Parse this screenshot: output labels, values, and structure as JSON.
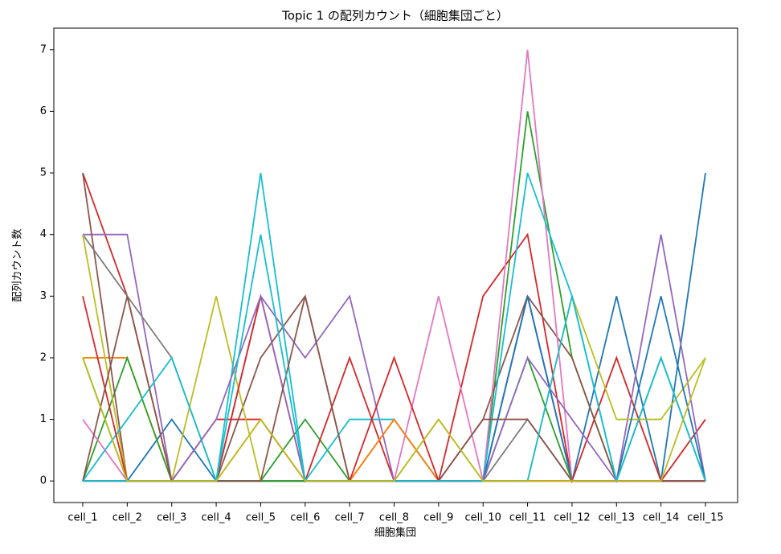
{
  "chart_data": {
    "type": "line",
    "title": "Topic 1 の配列カウント（細胞集団ごと）",
    "x_label": "細胞集団",
    "y_label": "配列カウント数",
    "categories": [
      "cell_1",
      "cell_2",
      "cell_3",
      "cell_4",
      "cell_5",
      "cell_6",
      "cell_7",
      "cell_8",
      "cell_9",
      "cell_10",
      "cell_11",
      "cell_12",
      "cell_13",
      "cell_14",
      "cell_15"
    ],
    "ylim": [
      -0.35,
      7.35
    ],
    "yticks": [
      0,
      1,
      2,
      3,
      4,
      5,
      6,
      7
    ],
    "grid": false,
    "series": [
      {
        "color": "#1f77b4",
        "values": [
          0,
          0,
          1,
          0,
          0,
          0,
          0,
          0,
          0,
          0,
          3,
          0,
          3,
          0,
          5
        ]
      },
      {
        "color": "#ff7f0e",
        "values": [
          2,
          2,
          0,
          0,
          0,
          0,
          0,
          1,
          0,
          0,
          0,
          0,
          0,
          0,
          0
        ]
      },
      {
        "color": "#2ca02c",
        "values": [
          0,
          2,
          0,
          0,
          0,
          1,
          0,
          0,
          0,
          0,
          6,
          2,
          0,
          0,
          0
        ]
      },
      {
        "color": "#d62728",
        "values": [
          5,
          3,
          0,
          1,
          1,
          0,
          2,
          0,
          0,
          3,
          4,
          0,
          2,
          0,
          1
        ]
      },
      {
        "color": "#9467bd",
        "values": [
          4,
          4,
          0,
          0,
          3,
          2,
          3,
          0,
          0,
          0,
          3,
          0,
          0,
          4,
          0
        ]
      },
      {
        "color": "#8c564b",
        "values": [
          5,
          0,
          0,
          0,
          2,
          3,
          0,
          0,
          0,
          1,
          3,
          2,
          0,
          0,
          0
        ]
      },
      {
        "color": "#e377c2",
        "values": [
          1,
          0,
          0,
          0,
          0,
          0,
          0,
          0,
          3,
          0,
          7,
          0,
          0,
          0,
          0
        ]
      },
      {
        "color": "#7f7f7f",
        "values": [
          4,
          3,
          2,
          0,
          0,
          0,
          0,
          0,
          0,
          0,
          1,
          0,
          0,
          0,
          0
        ]
      },
      {
        "color": "#bcbd22",
        "values": [
          4,
          0,
          0,
          3,
          0,
          0,
          0,
          0,
          1,
          0,
          0,
          3,
          1,
          1,
          2
        ]
      },
      {
        "color": "#17becf",
        "values": [
          0,
          1,
          2,
          0,
          5,
          0,
          1,
          1,
          0,
          0,
          5,
          3,
          0,
          0,
          0
        ]
      },
      {
        "color": "#1f77b4",
        "values": [
          0,
          0,
          0,
          0,
          0,
          0,
          0,
          0,
          0,
          0,
          3,
          0,
          0,
          3,
          0
        ]
      },
      {
        "color": "#ff7f0e",
        "values": [
          0,
          0,
          0,
          0,
          1,
          0,
          0,
          1,
          0,
          0,
          0,
          0,
          0,
          0,
          0
        ]
      },
      {
        "color": "#2ca02c",
        "values": [
          2,
          0,
          0,
          0,
          0,
          0,
          0,
          0,
          0,
          0,
          2,
          0,
          0,
          2,
          0
        ]
      },
      {
        "color": "#d62728",
        "values": [
          3,
          0,
          0,
          0,
          3,
          0,
          0,
          2,
          0,
          0,
          0,
          0,
          0,
          0,
          0
        ]
      },
      {
        "color": "#9467bd",
        "values": [
          0,
          0,
          0,
          1,
          3,
          0,
          0,
          0,
          0,
          0,
          2,
          1,
          0,
          0,
          0
        ]
      },
      {
        "color": "#8c564b",
        "values": [
          0,
          3,
          0,
          0,
          0,
          3,
          0,
          0,
          0,
          1,
          1,
          0,
          0,
          0,
          0
        ]
      },
      {
        "color": "#17becf",
        "values": [
          0,
          0,
          0,
          0,
          4,
          0,
          0,
          0,
          0,
          0,
          0,
          3,
          0,
          2,
          0
        ]
      },
      {
        "color": "#bcbd22",
        "values": [
          2,
          0,
          0,
          0,
          1,
          0,
          0,
          0,
          1,
          0,
          0,
          0,
          0,
          0,
          2
        ]
      }
    ]
  }
}
